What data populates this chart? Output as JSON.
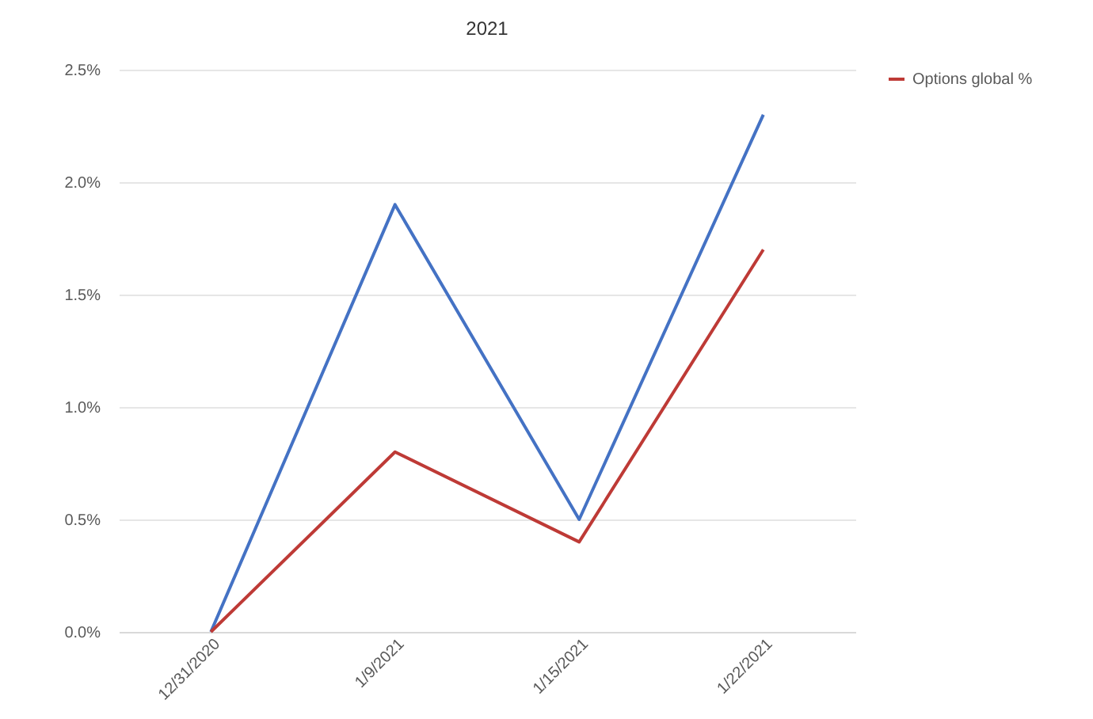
{
  "chart_data": {
    "type": "line",
    "title": "2021",
    "categories": [
      "12/31/2020",
      "1/9/2021",
      "1/15/2021",
      "1/22/2021"
    ],
    "series": [
      {
        "color": "#4472c4",
        "values": [
          0,
          1.9,
          0.5,
          2.3
        ]
      },
      {
        "name": "Options global %",
        "color": "#be3a36",
        "values": [
          0,
          0.8,
          0.4,
          1.7
        ]
      }
    ],
    "ylim": [
      0,
      2.5
    ],
    "yticks": [
      {
        "value": 0,
        "label": "0.0%"
      },
      {
        "value": 0.5,
        "label": "0.5%"
      },
      {
        "value": 1,
        "label": "1.0%"
      },
      {
        "value": 1.5,
        "label": "1.5%"
      },
      {
        "value": 2,
        "label": "2.0%"
      },
      {
        "value": 2.5,
        "label": "2.5%"
      }
    ],
    "grid": "y",
    "legend": "right",
    "marker": "none",
    "line_style": "solid"
  }
}
